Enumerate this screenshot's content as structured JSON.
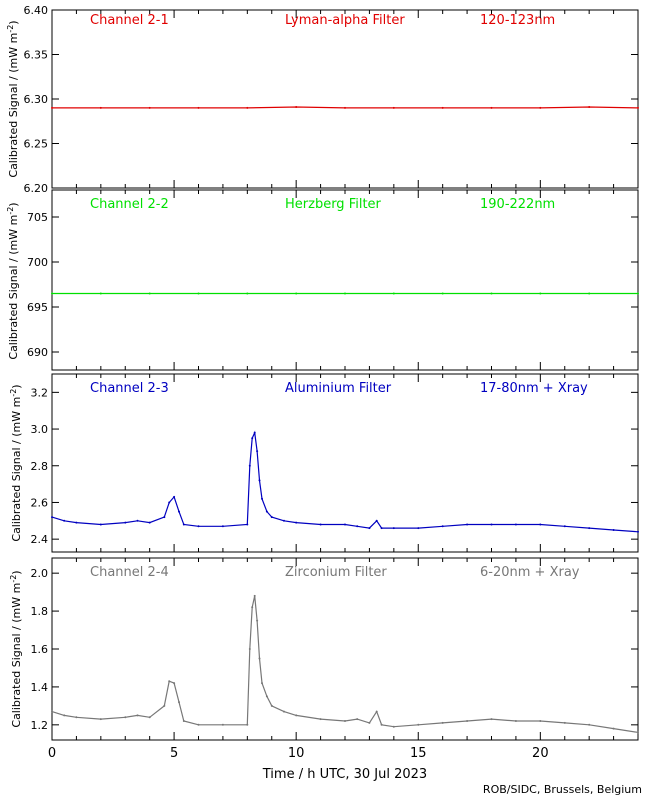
{
  "chart_data": {
    "type": "scatter",
    "shared_x": {
      "label": "Time / h UTC, 30 Jul 2023",
      "range": [
        0,
        24
      ],
      "ticks": [
        0,
        5,
        10,
        15,
        20
      ],
      "tick_labels": [
        "0",
        "5",
        "10",
        "15",
        "20"
      ]
    },
    "credit": "ROB/SIDC, Brussels, Belgium",
    "panels": [
      {
        "channel": "Channel 2-1",
        "filter": "Lyman-alpha Filter",
        "band": "120-123nm",
        "color": "#e00000",
        "ylabel": "Calibrated Signal / (mW m",
        "ylabel_sup": "-2",
        "ylabel_tail": ")",
        "ylim": [
          6.2,
          6.4
        ],
        "yticks": [
          6.2,
          6.25,
          6.3,
          6.35,
          6.4
        ],
        "ytick_labels": [
          "6.20",
          "6.25",
          "6.30",
          "6.35",
          "6.40"
        ],
        "x": [
          0,
          2,
          4,
          6,
          8,
          10,
          12,
          14,
          16,
          18,
          20,
          22,
          24
        ],
        "y": [
          6.29,
          6.29,
          6.29,
          6.29,
          6.29,
          6.291,
          6.29,
          6.29,
          6.29,
          6.29,
          6.29,
          6.291,
          6.29
        ]
      },
      {
        "channel": "Channel 2-2",
        "filter": "Herzberg Filter",
        "band": "190-222nm",
        "color": "#00e000",
        "ylabel": "Calibrated Signal / (mW m",
        "ylabel_sup": "-2",
        "ylabel_tail": ")",
        "ylim": [
          688,
          708
        ],
        "yticks": [
          690,
          695,
          700,
          705
        ],
        "ytick_labels": [
          "690",
          "695",
          "700",
          "705"
        ],
        "x": [
          0,
          2,
          4,
          6,
          8,
          10,
          12,
          14,
          16,
          18,
          20,
          22,
          24
        ],
        "y": [
          696.5,
          696.5,
          696.5,
          696.5,
          696.5,
          696.5,
          696.5,
          696.5,
          696.5,
          696.5,
          696.5,
          696.5,
          696.5
        ]
      },
      {
        "channel": "Channel 2-3",
        "filter": "Aluminium Filter",
        "band": "17-80nm + Xray",
        "color": "#0000c0",
        "ylabel": "Calibrated Signal / (mW m",
        "ylabel_sup": "-2",
        "ylabel_tail": ")",
        "ylim": [
          2.33,
          3.3
        ],
        "yticks": [
          2.4,
          2.6,
          2.8,
          3.0,
          3.2
        ],
        "ytick_labels": [
          "2.4",
          "2.6",
          "2.8",
          "3.0",
          "3.2"
        ],
        "x": [
          0,
          0.5,
          1,
          2,
          3,
          3.5,
          4,
          4.6,
          4.8,
          5.0,
          5.2,
          5.4,
          6,
          7,
          8.0,
          8.1,
          8.2,
          8.3,
          8.4,
          8.5,
          8.6,
          8.8,
          9.0,
          9.5,
          10,
          11,
          12,
          12.5,
          13,
          13.3,
          13.5,
          14,
          15,
          16,
          17,
          18,
          19,
          20,
          21,
          22,
          23,
          24
        ],
        "y": [
          2.52,
          2.5,
          2.49,
          2.48,
          2.49,
          2.5,
          2.49,
          2.52,
          2.6,
          2.63,
          2.55,
          2.48,
          2.47,
          2.47,
          2.48,
          2.8,
          2.95,
          2.98,
          2.88,
          2.72,
          2.62,
          2.55,
          2.52,
          2.5,
          2.49,
          2.48,
          2.48,
          2.47,
          2.46,
          2.5,
          2.46,
          2.46,
          2.46,
          2.47,
          2.48,
          2.48,
          2.48,
          2.48,
          2.47,
          2.46,
          2.45,
          2.44
        ]
      },
      {
        "channel": "Channel 2-4",
        "filter": "Zirconium Filter",
        "band": "6-20nm + Xray",
        "color": "#777777",
        "ylabel": "Calibrated Signal / (mW m",
        "ylabel_sup": "-2",
        "ylabel_tail": ")",
        "ylim": [
          1.12,
          2.08
        ],
        "yticks": [
          1.2,
          1.4,
          1.6,
          1.8,
          2.0
        ],
        "ytick_labels": [
          "1.2",
          "1.4",
          "1.6",
          "1.8",
          "2.0"
        ],
        "x": [
          0,
          0.5,
          1,
          2,
          3,
          3.5,
          4,
          4.6,
          4.8,
          5.0,
          5.2,
          5.4,
          6,
          7,
          8.0,
          8.1,
          8.2,
          8.3,
          8.4,
          8.5,
          8.6,
          8.8,
          9.0,
          9.5,
          10,
          11,
          12,
          12.5,
          13,
          13.3,
          13.5,
          14,
          15,
          16,
          17,
          18,
          19,
          20,
          21,
          22,
          23,
          24
        ],
        "y": [
          1.27,
          1.25,
          1.24,
          1.23,
          1.24,
          1.25,
          1.24,
          1.3,
          1.43,
          1.42,
          1.32,
          1.22,
          1.2,
          1.2,
          1.2,
          1.6,
          1.82,
          1.88,
          1.75,
          1.55,
          1.42,
          1.35,
          1.3,
          1.27,
          1.25,
          1.23,
          1.22,
          1.23,
          1.21,
          1.27,
          1.2,
          1.19,
          1.2,
          1.21,
          1.22,
          1.23,
          1.22,
          1.22,
          1.21,
          1.2,
          1.18,
          1.16
        ]
      }
    ]
  }
}
